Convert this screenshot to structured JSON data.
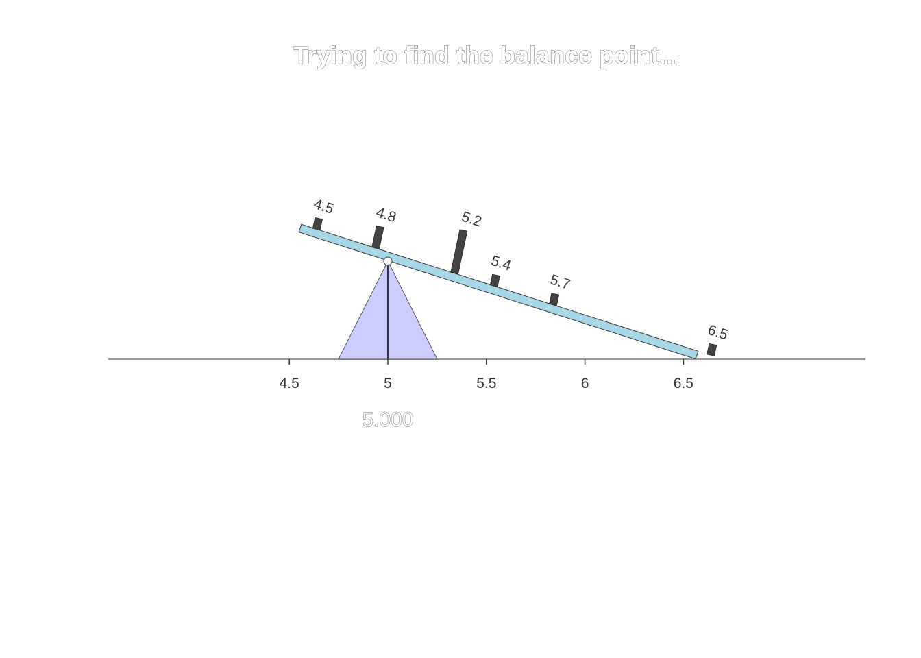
{
  "title": "Trying to find the balance point...",
  "fulcrum_readout": "5.000",
  "colors": {
    "beam": "#a8d8e8",
    "beam_outline": "#333333",
    "fulcrum": "#ccccff",
    "fulcrum_outline": "#555555",
    "weight": "#444444",
    "axis": "#999999",
    "text": "#333333"
  },
  "chart_data": {
    "type": "seesaw",
    "axis_ticks": [
      4.5,
      5,
      5.5,
      6,
      6.5
    ],
    "axis_tick_labels": [
      "4.5",
      "5",
      "5.5",
      "6",
      "6.5"
    ],
    "fulcrum_position": 5.0,
    "beam_range": [
      4.5,
      6.5
    ],
    "weights": [
      {
        "label": "4.5",
        "value": 4.5,
        "count": 1
      },
      {
        "label": "4.8",
        "value": 4.8,
        "count": 2
      },
      {
        "label": "5.2",
        "value": 5.2,
        "count": 4
      },
      {
        "label": "5.4",
        "value": 5.4,
        "count": 1
      },
      {
        "label": "5.7",
        "value": 5.7,
        "count": 1
      },
      {
        "label": "6.5",
        "value": 6.5,
        "count": 1
      }
    ]
  }
}
